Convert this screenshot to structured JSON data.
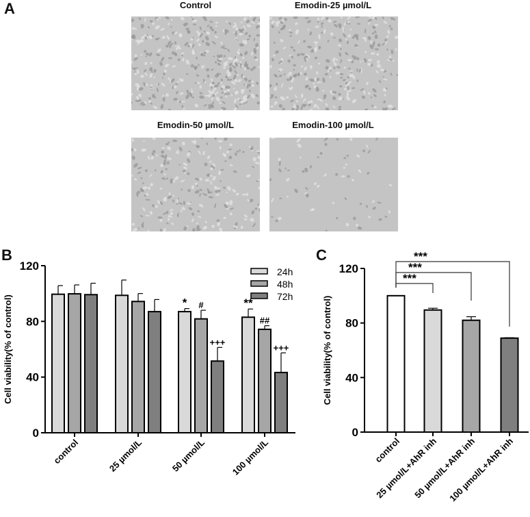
{
  "panels": {
    "a": "A",
    "b": "B",
    "c": "C"
  },
  "micrographs": [
    {
      "title": "Control",
      "density": "confluent"
    },
    {
      "title": "Emodin-25 µmol/L",
      "density": "dense"
    },
    {
      "title": "Emodin-50 µmol/L",
      "density": "moderate"
    },
    {
      "title": "Emodin-100 µmol/L",
      "density": "sparse"
    }
  ],
  "chart_data": [
    {
      "type": "bar",
      "panel": "B",
      "ylabel": "Cell viability(% of control)",
      "ylim": [
        0,
        120
      ],
      "yticks": [
        "0",
        "40",
        "80",
        "120"
      ],
      "categories": [
        "control",
        "25 µmol/L",
        "50 µmol/L",
        "100 µmol/L"
      ],
      "legend_position": "top-right",
      "series": [
        {
          "name": "24h",
          "color": "#d9d9d9",
          "values": [
            99.5,
            98.7,
            87,
            83
          ],
          "errors": [
            6.2,
            11,
            2.2,
            5.9
          ],
          "annotations": [
            "",
            "",
            "*",
            "**"
          ]
        },
        {
          "name": "48h",
          "color": "#a6a6a6",
          "values": [
            99.8,
            94.3,
            81.8,
            74.3
          ],
          "errors": [
            6.4,
            5.7,
            6.2,
            2.6
          ],
          "annotations": [
            "",
            "",
            "#",
            "##"
          ]
        },
        {
          "name": "72h",
          "color": "#7f7f7f",
          "values": [
            99.2,
            87,
            51.5,
            43.3
          ],
          "errors": [
            8.2,
            8.7,
            9.8,
            14.1
          ],
          "annotations": [
            "",
            "",
            "+++",
            "+++"
          ]
        }
      ]
    },
    {
      "type": "bar",
      "panel": "C",
      "ylabel": "Cell viability(% of control)",
      "ylim": [
        0,
        120
      ],
      "yticks": [
        "0",
        "40",
        "80",
        "120"
      ],
      "categories": [
        "control",
        "25 µmol/L+AhR inh",
        "50 µmol/L+AhR inh",
        "100 µmol/L+AhR inh"
      ],
      "values": [
        100,
        89.5,
        82,
        68.9
      ],
      "errors": [
        0,
        1.3,
        2.6,
        0.3
      ],
      "colors": [
        "#ffffff",
        "#d9d9d9",
        "#a6a6a6",
        "#7f7f7f"
      ],
      "comparisons": [
        {
          "from": 0,
          "to": 1,
          "label": "***"
        },
        {
          "from": 0,
          "to": 2,
          "label": "***"
        },
        {
          "from": 0,
          "to": 3,
          "label": "***"
        }
      ]
    }
  ]
}
